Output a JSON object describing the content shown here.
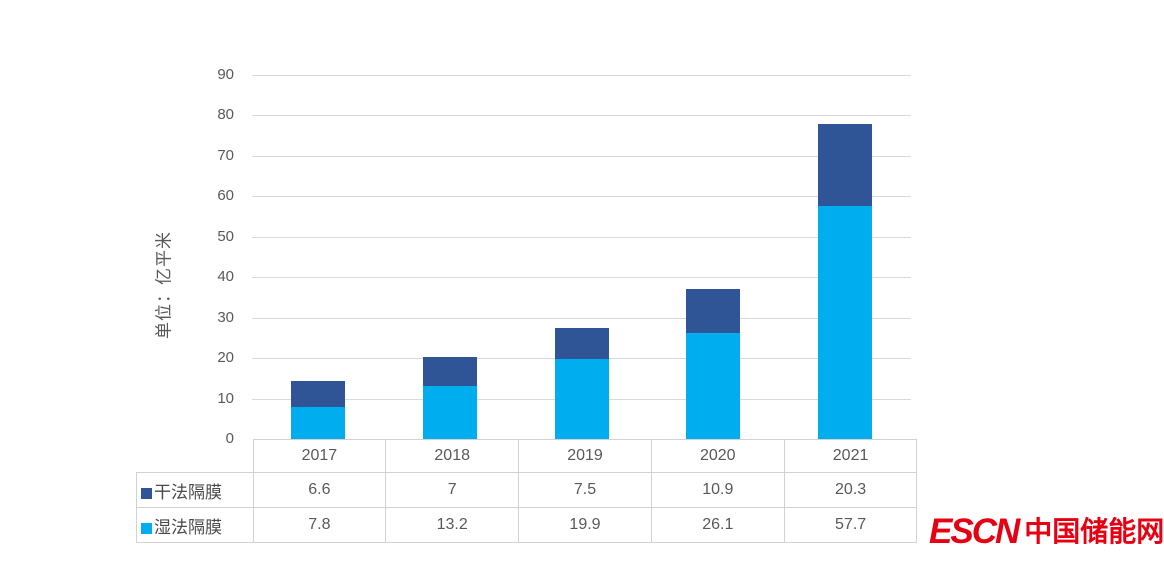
{
  "chart_data": {
    "type": "bar",
    "stacked": true,
    "title": "",
    "xlabel": "",
    "ylabel": "单位：亿平米",
    "categories": [
      "2017",
      "2018",
      "2019",
      "2020",
      "2021"
    ],
    "series": [
      {
        "name": "干法隔膜",
        "color": "#2F5597",
        "values": [
          6.6,
          7,
          7.5,
          10.9,
          20.3
        ]
      },
      {
        "name": "湿法隔膜",
        "color": "#00AEEF",
        "values": [
          7.8,
          13.2,
          19.9,
          26.1,
          57.7
        ]
      }
    ],
    "stack_order_bottom_to_top": [
      "湿法隔膜",
      "干法隔膜"
    ],
    "totals": [
      14.4,
      20.2,
      27.4,
      37,
      78
    ],
    "ylim": [
      0,
      90
    ],
    "yticks": [
      0,
      10,
      20,
      30,
      40,
      50,
      60,
      70,
      80,
      90
    ],
    "grid": true,
    "gridline_color": "#D9D9D9",
    "axis_text_color": "#595959",
    "table_border_color": "#D2D2D2",
    "legend_position": "table rows below chart, swatches before series names"
  },
  "branding": {
    "logo_escn": "ESCN",
    "logo_cn": "中国储能网",
    "logo_color": "#E60012"
  }
}
